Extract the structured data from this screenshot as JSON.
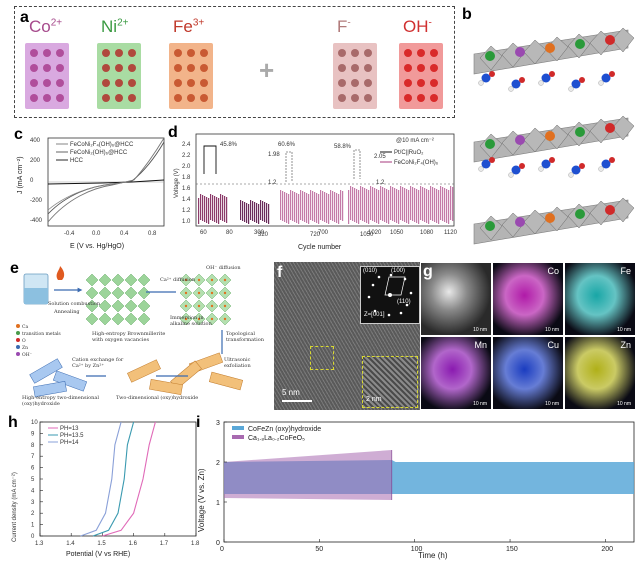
{
  "panel_a": {
    "label": "a",
    "ions": [
      {
        "name": "Co",
        "charge": "2+",
        "color": "#a64a8c",
        "grid_bg": "#d9a9e0",
        "dot": "#b04e9b"
      },
      {
        "name": "Ni",
        "charge": "2+",
        "color": "#3a9a42",
        "grid_bg": "#a9dca3",
        "dot": "#b0493d"
      },
      {
        "name": "Fe",
        "charge": "3+",
        "color": "#c0392b",
        "grid_bg": "#f2b48a",
        "dot": "#c95a33"
      },
      {
        "name": "F",
        "charge": "-",
        "color": "#b07a7a",
        "grid_bg": "#e8c2c2",
        "dot": "#a86a6a"
      },
      {
        "name": "OH",
        "charge": "-",
        "color": "#d03030",
        "grid_bg": "#f19a9a",
        "dot": "#d92a2a"
      }
    ],
    "plus": "+"
  },
  "panel_b": {
    "label": "b"
  },
  "panel_c": {
    "label": "c",
    "legend": [
      "FeCoNi₂F₄(OH)₆@HCC",
      "FeCoNi₂(OH)₆@HCC",
      "HCC"
    ],
    "xlabel": "E (V vs. Hg/HgO)",
    "ylabel": "J (mA cm⁻²)",
    "xticks": [
      "-0.4",
      "0.0",
      "0.4",
      "0.8"
    ],
    "yticks": [
      "400",
      "200",
      "0",
      "-200",
      "-400"
    ]
  },
  "panel_d": {
    "label": "d",
    "ylabel": "Voltage (V)",
    "xlabel": "Cycle number",
    "xticks": [
      "60",
      "80",
      "300",
      "700",
      "1020",
      "1050",
      "1080",
      "1120"
    ],
    "yticks": [
      "2.4",
      "2.2",
      "2.0",
      "1.8",
      "1.6",
      "1.4",
      "1.2",
      "1.0"
    ],
    "annotations": [
      "45.8%",
      "60.6%",
      "58.8%",
      "1.98",
      "2.05",
      "1.2",
      "1.2",
      "320",
      "720",
      "1050"
    ],
    "note": "@10 mA cm⁻²",
    "legend": [
      "Pt/C||RuO₂",
      "FeCoNi₂F₄(OH)₆"
    ]
  },
  "panel_e": {
    "label": "e",
    "steps": [
      "Solution combustion",
      "Annealing",
      "High-entropy Brownmillerite with oxygen vacancies",
      "Immersion in alkaline solution",
      "OH⁻ diffusion",
      "Ca²⁺ diffusion",
      "Topological transformation",
      "Ultrasonic exfoliation",
      "Two-dimensional (oxy)hydroxide",
      "Cation exchange for Ca²⁺ by Zn²⁺",
      "High-entropy two-dimensional (oxy)hydroxide"
    ],
    "legend": [
      "Ca",
      "transition metals",
      "O",
      "Zn",
      "OH⁻"
    ]
  },
  "panel_f": {
    "label": "f",
    "scalebar": "5 nm",
    "inset_scalebar": "2 nm",
    "fft_labels": [
      "(010)",
      "(100)",
      "(110)",
      "Z=[001]"
    ]
  },
  "panel_g": {
    "label": "g",
    "tiles": [
      {
        "element": "",
        "color": "#8a8a8a",
        "scale": "10 nm"
      },
      {
        "element": "Co",
        "color": "#b01aa8",
        "scale": "10 nm"
      },
      {
        "element": "Fe",
        "color": "#18a6a6",
        "scale": "10 nm"
      },
      {
        "element": "Mn",
        "color": "#8a1ab0",
        "scale": "10 nm"
      },
      {
        "element": "Cu",
        "color": "#1a3cc0",
        "scale": "10 nm"
      },
      {
        "element": "Zn",
        "color": "#b0b018",
        "scale": "10 nm"
      }
    ]
  },
  "panel_h": {
    "label": "h",
    "xlabel": "Potential (V vs RHE)",
    "ylabel": "Current density (mA cm⁻²)",
    "xticks": [
      "1.3",
      "1.4",
      "1.5",
      "1.6",
      "1.7",
      "1.8"
    ],
    "yticks": [
      "0",
      "1",
      "2",
      "3",
      "4",
      "5",
      "6",
      "7",
      "8",
      "9",
      "10"
    ],
    "legend": [
      "PH=13",
      "PH=13.5",
      "PH=14"
    ]
  },
  "panel_i": {
    "label": "i",
    "xlabel": "Time (h)",
    "ylabel": "Voltage (V vs. Zn)",
    "xticks": [
      "0",
      "50",
      "100",
      "150",
      "200"
    ],
    "yticks": [
      "0",
      "1",
      "2",
      "3"
    ],
    "legend": [
      "CoFeZn (oxy)hydroxide",
      "Ca₁.₈La₀.₂CoFeO₅"
    ]
  },
  "chart_data": [
    {
      "type": "line",
      "title": "",
      "xlabel": "Potential (V vs RHE)",
      "ylabel": "Current density (mA cm⁻²)",
      "xlim": [
        1.3,
        1.8
      ],
      "ylim": [
        0,
        10
      ],
      "series": [
        {
          "name": "PH=13",
          "x": [
            1.5,
            1.56,
            1.6,
            1.63,
            1.65,
            1.67
          ],
          "y": [
            0,
            0.5,
            2,
            5,
            8,
            10
          ]
        },
        {
          "name": "PH=13.5",
          "x": [
            1.47,
            1.52,
            1.55,
            1.57,
            1.58,
            1.6
          ],
          "y": [
            0,
            0.5,
            2,
            5,
            8,
            10
          ]
        },
        {
          "name": "PH=14",
          "x": [
            1.43,
            1.48,
            1.51,
            1.53,
            1.54,
            1.56
          ],
          "y": [
            0,
            0.5,
            2,
            5,
            8,
            10
          ]
        }
      ]
    },
    {
      "type": "line",
      "title": "",
      "xlabel": "Time (h)",
      "ylabel": "Voltage (V vs. Zn)",
      "xlim": [
        0,
        215
      ],
      "ylim": [
        0,
        3
      ],
      "series": [
        {
          "name": "CoFeZn (oxy)hydroxide",
          "x": [
            0,
            88,
            90,
            215
          ],
          "y_upper": [
            2.0,
            2.05,
            2.0,
            2.0
          ],
          "y_lower": [
            1.2,
            1.2,
            1.2,
            1.2
          ]
        },
        {
          "name": "Ca₁.₈La₀.₂CoFeO₅",
          "x": [
            0,
            88
          ],
          "y_upper": [
            2.0,
            2.3
          ],
          "y_lower": [
            1.1,
            1.05
          ]
        }
      ]
    }
  ]
}
